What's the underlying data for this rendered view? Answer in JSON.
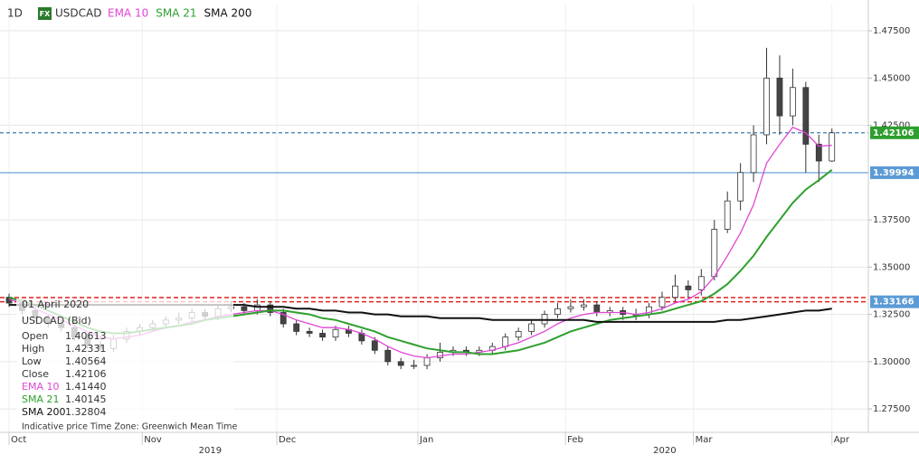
{
  "chart_data": {
    "type": "candlestick",
    "timeframe": "1D",
    "symbol_badge": "FX",
    "symbol": "USDCAD",
    "open": [
      1.334,
      1.331,
      1.327,
      1.323,
      1.32,
      1.318,
      1.313,
      1.309,
      1.307,
      1.312,
      1.316,
      1.318,
      1.32,
      1.322,
      1.323,
      1.326,
      1.324,
      1.328,
      1.329,
      1.327,
      1.33,
      1.326,
      1.32,
      1.316,
      1.315,
      1.313,
      1.317,
      1.315,
      1.311,
      1.306,
      1.3,
      1.298,
      1.298,
      1.302,
      1.305,
      1.306,
      1.305,
      1.306,
      1.308,
      1.313,
      1.316,
      1.32,
      1.325,
      1.328,
      1.329,
      1.33,
      1.326,
      1.327,
      1.325,
      1.325,
      1.329,
      1.334,
      1.34,
      1.338,
      1.345,
      1.37,
      1.385,
      1.4,
      1.42,
      1.45,
      1.43,
      1.445,
      1.415,
      1.40613
    ],
    "high": [
      1.336,
      1.333,
      1.329,
      1.325,
      1.322,
      1.32,
      1.315,
      1.311,
      1.314,
      1.318,
      1.32,
      1.322,
      1.324,
      1.326,
      1.328,
      1.328,
      1.33,
      1.332,
      1.331,
      1.333,
      1.332,
      1.328,
      1.322,
      1.318,
      1.317,
      1.319,
      1.319,
      1.317,
      1.313,
      1.308,
      1.302,
      1.301,
      1.304,
      1.31,
      1.308,
      1.308,
      1.308,
      1.31,
      1.315,
      1.318,
      1.322,
      1.327,
      1.331,
      1.333,
      1.333,
      1.332,
      1.329,
      1.329,
      1.328,
      1.331,
      1.337,
      1.346,
      1.343,
      1.349,
      1.375,
      1.39,
      1.405,
      1.425,
      1.466,
      1.462,
      1.455,
      1.448,
      1.42,
      1.42331
    ],
    "low": [
      1.329,
      1.325,
      1.321,
      1.318,
      1.316,
      1.311,
      1.307,
      1.305,
      1.305,
      1.31,
      1.314,
      1.316,
      1.318,
      1.32,
      1.321,
      1.322,
      1.322,
      1.326,
      1.325,
      1.325,
      1.324,
      1.318,
      1.314,
      1.313,
      1.311,
      1.311,
      1.313,
      1.309,
      1.304,
      1.298,
      1.296,
      1.296,
      1.296,
      1.3,
      1.303,
      1.303,
      1.303,
      1.304,
      1.306,
      1.311,
      1.314,
      1.318,
      1.323,
      1.326,
      1.327,
      1.324,
      1.324,
      1.322,
      1.322,
      1.323,
      1.327,
      1.332,
      1.334,
      1.335,
      1.343,
      1.368,
      1.38,
      1.395,
      1.415,
      1.42,
      1.425,
      1.4,
      1.395,
      1.40564
    ],
    "close": [
      1.331,
      1.327,
      1.323,
      1.32,
      1.318,
      1.313,
      1.309,
      1.307,
      1.312,
      1.316,
      1.318,
      1.32,
      1.322,
      1.323,
      1.326,
      1.324,
      1.328,
      1.329,
      1.327,
      1.33,
      1.326,
      1.32,
      1.316,
      1.315,
      1.313,
      1.317,
      1.315,
      1.311,
      1.306,
      1.3,
      1.298,
      1.298,
      1.302,
      1.305,
      1.306,
      1.305,
      1.306,
      1.308,
      1.313,
      1.316,
      1.32,
      1.325,
      1.328,
      1.329,
      1.33,
      1.326,
      1.327,
      1.325,
      1.325,
      1.329,
      1.334,
      1.34,
      1.338,
      1.345,
      1.37,
      1.385,
      1.4,
      1.42,
      1.45,
      1.43,
      1.445,
      1.415,
      1.40613,
      1.42106
    ],
    "up_color": "#ffffff",
    "down_color": "#444444",
    "candle_border": "#333333",
    "series": [
      {
        "name": "EMA 10",
        "color": "#e045d6",
        "values": [
          1.333,
          1.331,
          1.328,
          1.325,
          1.322,
          1.319,
          1.316,
          1.313,
          1.312,
          1.313,
          1.314,
          1.316,
          1.318,
          1.319,
          1.321,
          1.322,
          1.324,
          1.325,
          1.326,
          1.327,
          1.327,
          1.325,
          1.322,
          1.32,
          1.318,
          1.318,
          1.317,
          1.315,
          1.312,
          1.308,
          1.305,
          1.303,
          1.302,
          1.303,
          1.304,
          1.304,
          1.305,
          1.306,
          1.308,
          1.31,
          1.313,
          1.316,
          1.32,
          1.323,
          1.325,
          1.326,
          1.326,
          1.326,
          1.325,
          1.326,
          1.328,
          1.331,
          1.333,
          1.337,
          1.345,
          1.356,
          1.368,
          1.383,
          1.405,
          1.415,
          1.424,
          1.421,
          1.414,
          1.4144
        ]
      },
      {
        "name": "SMA 21",
        "color": "#2ea02e",
        "values": [
          1.334,
          1.332,
          1.33,
          1.327,
          1.324,
          1.321,
          1.318,
          1.316,
          1.315,
          1.315,
          1.316,
          1.317,
          1.318,
          1.319,
          1.32,
          1.322,
          1.323,
          1.324,
          1.325,
          1.326,
          1.327,
          1.327,
          1.326,
          1.325,
          1.323,
          1.322,
          1.32,
          1.318,
          1.316,
          1.313,
          1.311,
          1.309,
          1.307,
          1.306,
          1.305,
          1.305,
          1.304,
          1.304,
          1.305,
          1.306,
          1.308,
          1.31,
          1.313,
          1.316,
          1.318,
          1.32,
          1.322,
          1.323,
          1.324,
          1.325,
          1.326,
          1.328,
          1.33,
          1.332,
          1.336,
          1.341,
          1.348,
          1.356,
          1.366,
          1.375,
          1.384,
          1.391,
          1.396,
          1.40145
        ]
      },
      {
        "name": "SMA 200",
        "color": "#111111",
        "values": [
          1.33,
          1.33,
          1.33,
          1.33,
          1.33,
          1.33,
          1.33,
          1.33,
          1.33,
          1.33,
          1.33,
          1.33,
          1.33,
          1.33,
          1.33,
          1.33,
          1.33,
          1.33,
          1.33,
          1.329,
          1.329,
          1.329,
          1.328,
          1.328,
          1.327,
          1.327,
          1.326,
          1.326,
          1.325,
          1.325,
          1.324,
          1.324,
          1.324,
          1.323,
          1.323,
          1.323,
          1.323,
          1.322,
          1.322,
          1.322,
          1.322,
          1.322,
          1.322,
          1.322,
          1.322,
          1.321,
          1.321,
          1.321,
          1.321,
          1.321,
          1.321,
          1.321,
          1.321,
          1.321,
          1.321,
          1.322,
          1.322,
          1.323,
          1.324,
          1.325,
          1.326,
          1.327,
          1.327,
          1.32804
        ]
      }
    ],
    "ylim": [
      1.2626,
      1.4889
    ],
    "yticks": [
      {
        "value": 1.475,
        "label": "1.47500"
      },
      {
        "value": 1.45,
        "label": "1.45000"
      },
      {
        "value": 1.425,
        "label": "1.42500"
      },
      {
        "value": 1.375,
        "label": "1.37500"
      },
      {
        "value": 1.35,
        "label": "1.35000"
      },
      {
        "value": 1.325,
        "label": "1.32500"
      },
      {
        "value": 1.3,
        "label": "1.30000"
      },
      {
        "value": 1.275,
        "label": "1.27500"
      }
    ],
    "xlim": [
      0,
      66.5
    ],
    "xticks": [
      {
        "value": 0,
        "label": "Oct"
      },
      {
        "value": 10.2,
        "label": "Nov"
      },
      {
        "value": 20.5,
        "label": "Dec"
      },
      {
        "value": 31.3,
        "label": "Jan"
      },
      {
        "value": 42.6,
        "label": "Feb"
      },
      {
        "value": 52.4,
        "label": "Mar"
      },
      {
        "value": 63,
        "label": "Apr"
      }
    ],
    "year_labels": [
      {
        "value": 15.4,
        "label": "2019"
      },
      {
        "value": 50.2,
        "label": "2020"
      }
    ],
    "grid": true,
    "price_lines": [
      {
        "value": 1.42106,
        "label": "1.42106",
        "color": "#5a8fba",
        "style": "dashed",
        "label_color": "#2e9e2e"
      },
      {
        "value": 1.39994,
        "label": "1.39994",
        "color": "#5b9bd5",
        "style": "solid",
        "label_color": "#5b9bd5"
      },
      {
        "value": 1.3339,
        "color": "#e02020",
        "style": "dashed"
      },
      {
        "value": 1.33166,
        "label": "1.33166",
        "color": "#e02020",
        "style": "dashed",
        "label_color": "#5b9bd5"
      }
    ],
    "info_panel": {
      "date": "01 April 2020",
      "title": "USDCAD (Bid)",
      "rows": [
        {
          "label": "Open",
          "value": "1.40613"
        },
        {
          "label": "High",
          "value": "1.42331"
        },
        {
          "label": "Low",
          "value": "1.40564"
        },
        {
          "label": "Close",
          "value": "1.42106"
        },
        {
          "label": "EMA 10",
          "value": "1.41440"
        },
        {
          "label": "SMA 21",
          "value": "1.40145"
        },
        {
          "label": "SMA 200",
          "value": "1.32804"
        }
      ],
      "footer": "Indicative price   Time Zone: Greenwich Mean Time"
    }
  }
}
